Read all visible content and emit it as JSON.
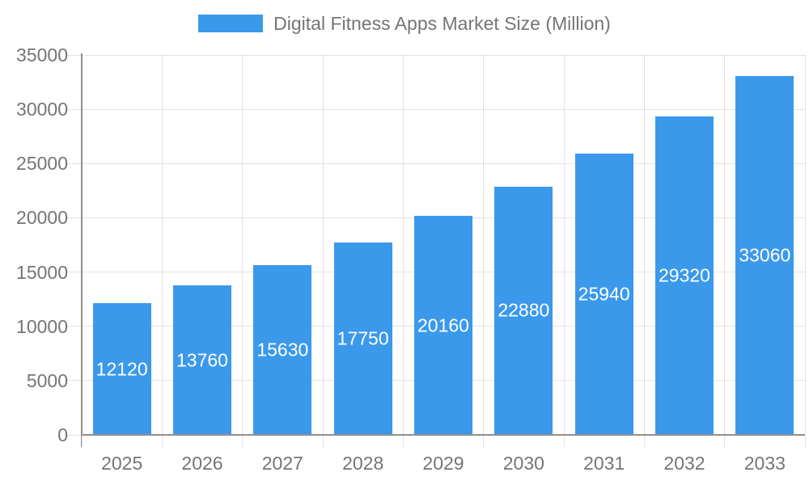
{
  "legend": {
    "label": "Digital Fitness Apps Market Size (Million)"
  },
  "chart_data": {
    "type": "bar",
    "title": "Digital Fitness Apps Market Size (Million)",
    "series_name": "Digital Fitness Apps Market Size (Million)",
    "categories": [
      "2025",
      "2026",
      "2027",
      "2028",
      "2029",
      "2030",
      "2031",
      "2032",
      "2033"
    ],
    "values": [
      12120,
      13760,
      15630,
      17750,
      20160,
      22880,
      25940,
      29320,
      33060
    ],
    "value_labels": [
      "12120",
      "13760",
      "15630",
      "17750",
      "20160",
      "22880",
      "25940",
      "29320",
      "33060"
    ],
    "value_labels_position": "inside-center",
    "xlabel": "",
    "ylabel": "",
    "ylim": [
      0,
      35000
    ],
    "yticks": [
      0,
      5000,
      10000,
      15000,
      20000,
      25000,
      30000,
      35000
    ],
    "grid": true,
    "grid_vertical": true,
    "legend_position": "top-center",
    "colors": {
      "bar": "#3B99EC",
      "value_label": "#FFFFFF",
      "axis_line": "#8F8F8F",
      "gridline": "#E2E2E2",
      "tick_label": "#757575",
      "background": "#FFFFFF"
    }
  }
}
